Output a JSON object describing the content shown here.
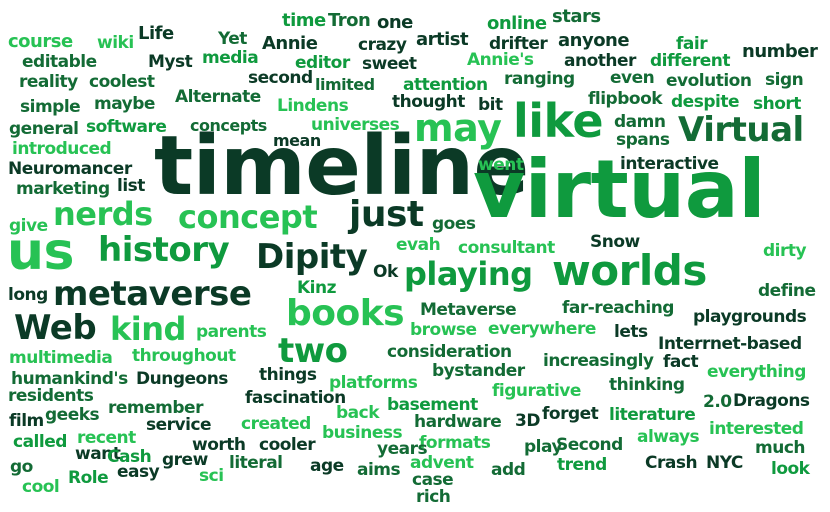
{
  "palette": {
    "dark": "#0b3a26",
    "forest": "#136b35",
    "green": "#0f9a3e",
    "bright": "#27c254",
    "mint": "#2fd08a"
  },
  "words": [
    "time",
    "Tron",
    "one",
    "stars",
    "online",
    "course",
    "wiki",
    "Life",
    "Yet",
    "Annie",
    "crazy",
    "artist",
    "drifter",
    "anyone",
    "fair",
    "number",
    "editable",
    "Myst",
    "media",
    "editor",
    "sweet",
    "Annie's",
    "another",
    "different",
    "reality",
    "coolest",
    "second",
    "limited",
    "attention",
    "ranging",
    "even",
    "evolution",
    "sign",
    "simple",
    "maybe",
    "Alternate",
    "Lindens",
    "thought",
    "bit",
    "flipbook",
    "despite",
    "short",
    "general",
    "software",
    "concepts",
    "universes",
    "may",
    "like",
    "damn",
    "spans",
    "Virtual",
    "introduced",
    "mean",
    "timeline",
    "went",
    "interactive",
    "Neuromancer",
    "marketing",
    "list",
    "virtual",
    "nerds",
    "concept",
    "just",
    "goes",
    "give",
    "us",
    "history",
    "Dipity",
    "evah",
    "consultant",
    "Snow",
    "dirty",
    "Ok",
    "playing",
    "worlds",
    "long",
    "metaverse",
    "Kinz",
    "define",
    "books",
    "Metaverse",
    "far-reaching",
    "Web",
    "kind",
    "browse",
    "everywhere",
    "lets",
    "playgrounds",
    "two",
    "parents",
    "multimedia",
    "throughout",
    "consideration",
    "Interrnet-based",
    "increasingly",
    "fact",
    "humankind's",
    "Dungeons",
    "things",
    "bystander",
    "everything",
    "residents",
    "platforms",
    "figurative",
    "thinking",
    "fascination",
    "basement",
    "2.0",
    "Dragons",
    "film",
    "geeks",
    "remember",
    "back",
    "3D",
    "forget",
    "literature",
    "called",
    "recent",
    "service",
    "created",
    "hardware",
    "interested",
    "worth",
    "cooler",
    "business",
    "formats",
    "play",
    "Second",
    "always",
    "much",
    "go",
    "want",
    "Cash",
    "grew",
    "literal",
    "years",
    "trend",
    "Crash",
    "NYC",
    "cool",
    "Role",
    "easy",
    "sci",
    "age",
    "aims",
    "advent",
    "add",
    "look",
    "case",
    "rich"
  ]
}
